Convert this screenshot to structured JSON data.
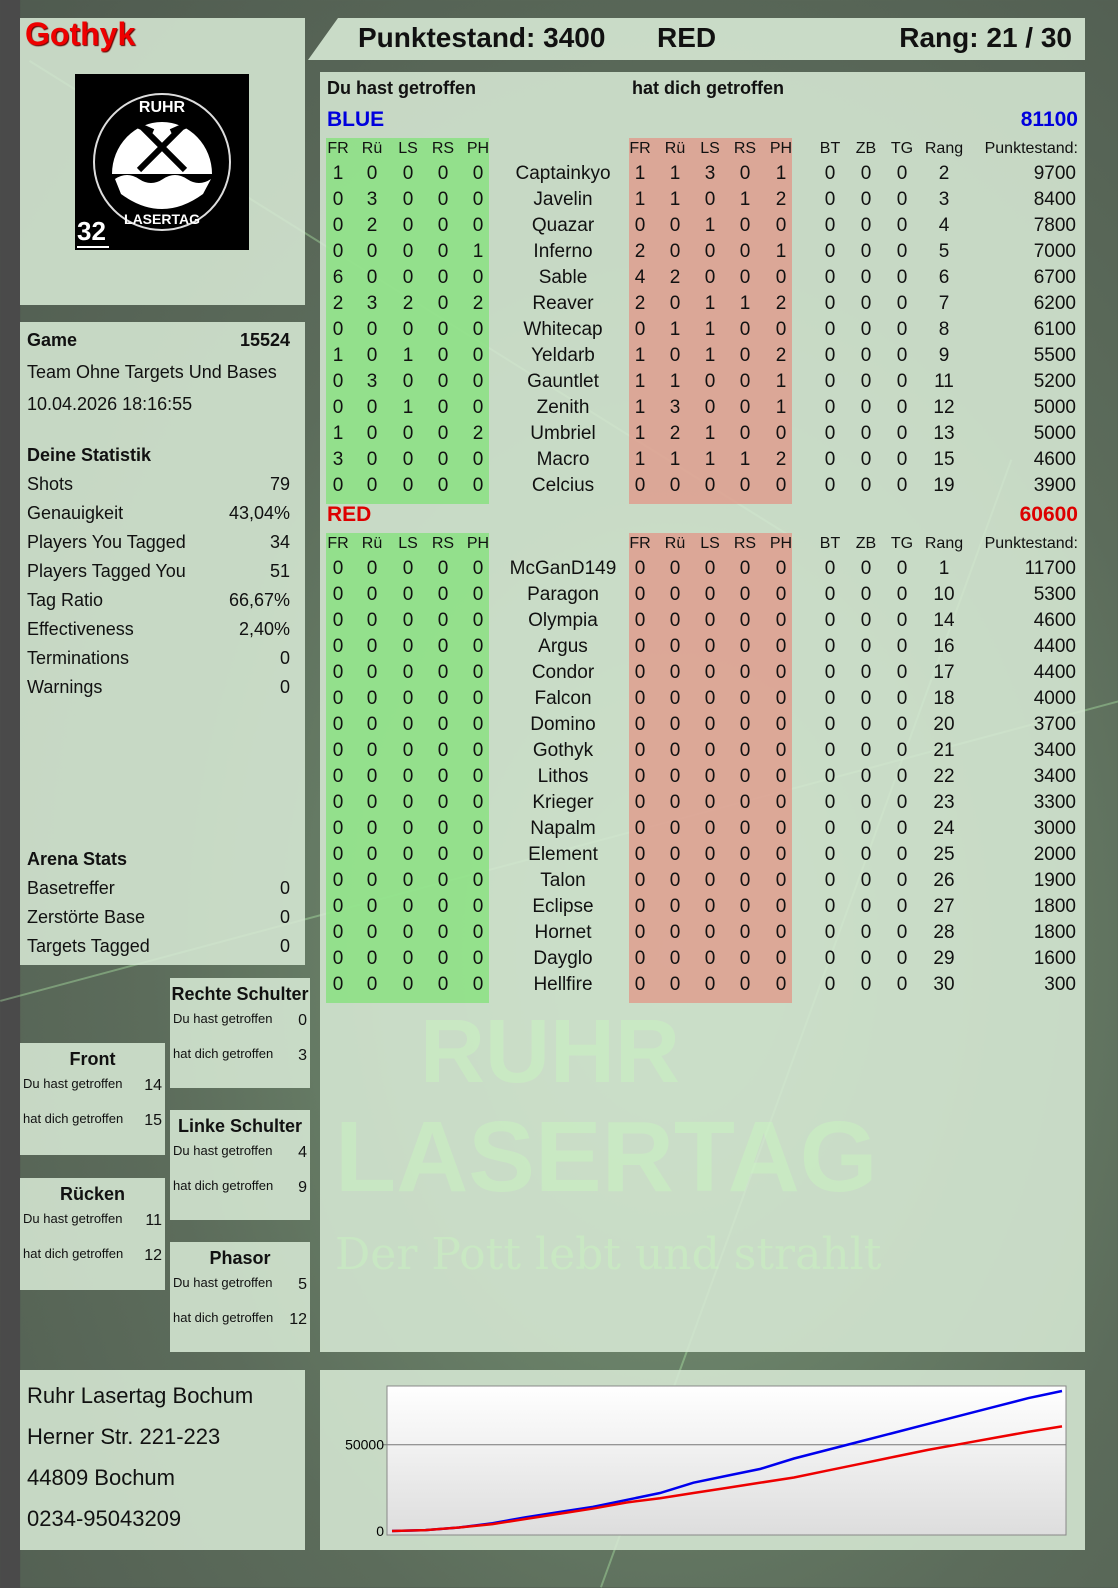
{
  "player": {
    "name": "Gothyk",
    "logo_text": "RUHR LASERTAG",
    "logo_number": "32"
  },
  "header": {
    "score_label": "Punktestand: 3400",
    "team": "RED",
    "rank_label": "Rang: 21 / 30"
  },
  "main": {
    "hit_label": "Du hast getroffen",
    "got_label": "hat dich getroffen",
    "columns": {
      "hit": [
        "FR",
        "Rü",
        "LS",
        "RS",
        "PH"
      ],
      "got": [
        "FR",
        "Rü",
        "LS",
        "RS",
        "PH"
      ],
      "extra": [
        "BT",
        "ZB",
        "TG",
        "Rang"
      ],
      "score": "Punktestand:"
    },
    "teams": [
      {
        "name": "BLUE",
        "total": "81100",
        "color": "#0000dd",
        "rows": [
          [
            "Captainkyo",
            [
              1,
              0,
              0,
              0,
              0
            ],
            [
              1,
              1,
              3,
              0,
              1
            ],
            [
              0,
              0,
              0
            ],
            2,
            9700
          ],
          [
            "Javelin",
            [
              0,
              3,
              0,
              0,
              0
            ],
            [
              1,
              1,
              0,
              1,
              2
            ],
            [
              0,
              0,
              0
            ],
            3,
            8400
          ],
          [
            "Quazar",
            [
              0,
              2,
              0,
              0,
              0
            ],
            [
              0,
              0,
              1,
              0,
              0
            ],
            [
              0,
              0,
              0
            ],
            4,
            7800
          ],
          [
            "Inferno",
            [
              0,
              0,
              0,
              0,
              1
            ],
            [
              2,
              0,
              0,
              0,
              1
            ],
            [
              0,
              0,
              0
            ],
            5,
            7000
          ],
          [
            "Sable",
            [
              6,
              0,
              0,
              0,
              0
            ],
            [
              4,
              2,
              0,
              0,
              0
            ],
            [
              0,
              0,
              0
            ],
            6,
            6700
          ],
          [
            "Reaver",
            [
              2,
              3,
              2,
              0,
              2
            ],
            [
              2,
              0,
              1,
              1,
              2
            ],
            [
              0,
              0,
              0
            ],
            7,
            6200
          ],
          [
            "Whitecap",
            [
              0,
              0,
              0,
              0,
              0
            ],
            [
              0,
              1,
              1,
              0,
              0
            ],
            [
              0,
              0,
              0
            ],
            8,
            6100
          ],
          [
            "Yeldarb",
            [
              1,
              0,
              1,
              0,
              0
            ],
            [
              1,
              0,
              1,
              0,
              2
            ],
            [
              0,
              0,
              0
            ],
            9,
            5500
          ],
          [
            "Gauntlet",
            [
              0,
              3,
              0,
              0,
              0
            ],
            [
              1,
              1,
              0,
              0,
              1
            ],
            [
              0,
              0,
              0
            ],
            11,
            5200
          ],
          [
            "Zenith",
            [
              0,
              0,
              1,
              0,
              0
            ],
            [
              1,
              3,
              0,
              0,
              1
            ],
            [
              0,
              0,
              0
            ],
            12,
            5000
          ],
          [
            "Umbriel",
            [
              1,
              0,
              0,
              0,
              2
            ],
            [
              1,
              2,
              1,
              0,
              0
            ],
            [
              0,
              0,
              0
            ],
            13,
            5000
          ],
          [
            "Macro",
            [
              3,
              0,
              0,
              0,
              0
            ],
            [
              1,
              1,
              1,
              1,
              2
            ],
            [
              0,
              0,
              0
            ],
            15,
            4600
          ],
          [
            "Celcius",
            [
              0,
              0,
              0,
              0,
              0
            ],
            [
              0,
              0,
              0,
              0,
              0
            ],
            [
              0,
              0,
              0
            ],
            19,
            3900
          ]
        ]
      },
      {
        "name": "RED",
        "total": "60600",
        "color": "#dd0000",
        "rows": [
          [
            "McGanD149",
            [
              0,
              0,
              0,
              0,
              0
            ],
            [
              0,
              0,
              0,
              0,
              0
            ],
            [
              0,
              0,
              0
            ],
            1,
            11700
          ],
          [
            "Paragon",
            [
              0,
              0,
              0,
              0,
              0
            ],
            [
              0,
              0,
              0,
              0,
              0
            ],
            [
              0,
              0,
              0
            ],
            10,
            5300
          ],
          [
            "Olympia",
            [
              0,
              0,
              0,
              0,
              0
            ],
            [
              0,
              0,
              0,
              0,
              0
            ],
            [
              0,
              0,
              0
            ],
            14,
            4600
          ],
          [
            "Argus",
            [
              0,
              0,
              0,
              0,
              0
            ],
            [
              0,
              0,
              0,
              0,
              0
            ],
            [
              0,
              0,
              0
            ],
            16,
            4400
          ],
          [
            "Condor",
            [
              0,
              0,
              0,
              0,
              0
            ],
            [
              0,
              0,
              0,
              0,
              0
            ],
            [
              0,
              0,
              0
            ],
            17,
            4400
          ],
          [
            "Falcon",
            [
              0,
              0,
              0,
              0,
              0
            ],
            [
              0,
              0,
              0,
              0,
              0
            ],
            [
              0,
              0,
              0
            ],
            18,
            4000
          ],
          [
            "Domino",
            [
              0,
              0,
              0,
              0,
              0
            ],
            [
              0,
              0,
              0,
              0,
              0
            ],
            [
              0,
              0,
              0
            ],
            20,
            3700
          ],
          [
            "Gothyk",
            [
              0,
              0,
              0,
              0,
              0
            ],
            [
              0,
              0,
              0,
              0,
              0
            ],
            [
              0,
              0,
              0
            ],
            21,
            3400
          ],
          [
            "Lithos",
            [
              0,
              0,
              0,
              0,
              0
            ],
            [
              0,
              0,
              0,
              0,
              0
            ],
            [
              0,
              0,
              0
            ],
            22,
            3400
          ],
          [
            "Krieger",
            [
              0,
              0,
              0,
              0,
              0
            ],
            [
              0,
              0,
              0,
              0,
              0
            ],
            [
              0,
              0,
              0
            ],
            23,
            3300
          ],
          [
            "Napalm",
            [
              0,
              0,
              0,
              0,
              0
            ],
            [
              0,
              0,
              0,
              0,
              0
            ],
            [
              0,
              0,
              0
            ],
            24,
            3000
          ],
          [
            "Element",
            [
              0,
              0,
              0,
              0,
              0
            ],
            [
              0,
              0,
              0,
              0,
              0
            ],
            [
              0,
              0,
              0
            ],
            25,
            2000
          ],
          [
            "Talon",
            [
              0,
              0,
              0,
              0,
              0
            ],
            [
              0,
              0,
              0,
              0,
              0
            ],
            [
              0,
              0,
              0
            ],
            26,
            1900
          ],
          [
            "Eclipse",
            [
              0,
              0,
              0,
              0,
              0
            ],
            [
              0,
              0,
              0,
              0,
              0
            ],
            [
              0,
              0,
              0
            ],
            27,
            1800
          ],
          [
            "Hornet",
            [
              0,
              0,
              0,
              0,
              0
            ],
            [
              0,
              0,
              0,
              0,
              0
            ],
            [
              0,
              0,
              0
            ],
            28,
            1800
          ],
          [
            "Dayglo",
            [
              0,
              0,
              0,
              0,
              0
            ],
            [
              0,
              0,
              0,
              0,
              0
            ],
            [
              0,
              0,
              0
            ],
            29,
            1600
          ],
          [
            "Hellfire",
            [
              0,
              0,
              0,
              0,
              0
            ],
            [
              0,
              0,
              0,
              0,
              0
            ],
            [
              0,
              0,
              0
            ],
            30,
            300
          ]
        ]
      }
    ]
  },
  "game": {
    "label": "Game",
    "id": "15524",
    "mode": "Team Ohne Targets Und Bases",
    "datetime": "10.04.2026 18:16:55"
  },
  "stats": {
    "title": "Deine Statistik",
    "items": [
      [
        "Shots",
        "79"
      ],
      [
        "Genauigkeit",
        "43,04%"
      ],
      [
        "Players You Tagged",
        "34"
      ],
      [
        "Players Tagged You",
        "51"
      ],
      [
        "Tag Ratio",
        "66,67%"
      ],
      [
        "Effectiveness",
        "2,40%"
      ],
      [
        "Terminations",
        "0"
      ],
      [
        "Warnings",
        "0"
      ]
    ]
  },
  "arena": {
    "title": "Arena Stats",
    "items": [
      [
        "Basetreffer",
        "0"
      ],
      [
        "Zerstörte Base",
        "0"
      ],
      [
        "Targets Tagged",
        "0"
      ]
    ]
  },
  "zones": [
    {
      "title": "Rechte Schulter",
      "hit": "0",
      "got": "3"
    },
    {
      "title": "Front",
      "hit": "14",
      "got": "15"
    },
    {
      "title": "Linke Schulter",
      "hit": "4",
      "got": "9"
    },
    {
      "title": "Rücken",
      "hit": "11",
      "got": "12"
    },
    {
      "title": "Phasor",
      "hit": "5",
      "got": "12"
    }
  ],
  "zone_labels": {
    "hit": "Du hast getroffen",
    "got": "hat dich getroffen"
  },
  "address": [
    "Ruhr Lasertag Bochum",
    "Herner Str. 221-223",
    "44809 Bochum",
    "0234-95043209"
  ],
  "watermark": {
    "line1": "RUHR",
    "line2": "LASERTAG",
    "slogan": "Der Pott lebt und strahlt"
  },
  "chart_data": {
    "type": "line",
    "ylim": [
      0,
      84000
    ],
    "yticks": [
      "0",
      "50000"
    ],
    "grid": true,
    "series": [
      {
        "color": "#0000ee",
        "values": [
          0,
          500,
          2000,
          4500,
          8000,
          11000,
          14000,
          18000,
          22000,
          28000,
          32000,
          36000,
          42000,
          47000,
          52000,
          57000,
          62000,
          67000,
          72000,
          77000,
          81100
        ]
      },
      {
        "color": "#ee0000",
        "values": [
          0,
          500,
          2000,
          4000,
          7000,
          10000,
          13000,
          16500,
          19000,
          22000,
          25000,
          28000,
          31000,
          35000,
          39000,
          43000,
          47000,
          50500,
          54000,
          57500,
          60600
        ]
      }
    ]
  }
}
